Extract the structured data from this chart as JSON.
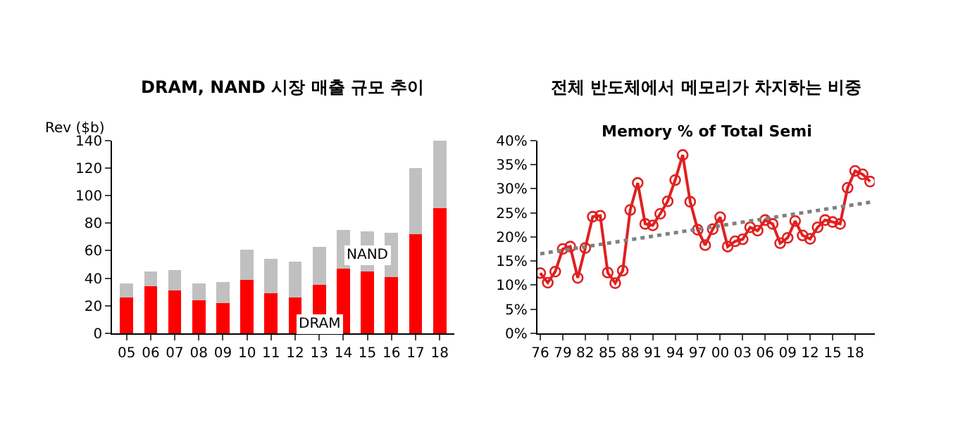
{
  "chart_data": [
    {
      "type": "bar",
      "title": "DRAM, NAND 시장 매출 규모 추이",
      "ylabel": "Rev ($b)",
      "stacked": true,
      "categories": [
        "05",
        "06",
        "07",
        "08",
        "09",
        "10",
        "11",
        "12",
        "13",
        "14",
        "15",
        "16",
        "17",
        "18"
      ],
      "series": [
        {
          "color": "#ff0000",
          "values": [
            26,
            34,
            31,
            24,
            22,
            39,
            29,
            26,
            35,
            47,
            45,
            41,
            72,
            91
          ]
        },
        {
          "color": "#c0c0c0",
          "values": [
            10,
            11,
            15,
            12,
            15,
            22,
            25,
            26,
            28,
            28,
            29,
            32,
            48,
            49
          ]
        }
      ],
      "ylim": [
        0,
        140
      ],
      "yticks": [
        0,
        20,
        40,
        60,
        80,
        100,
        120,
        140
      ],
      "annotations": [
        {
          "text": "DRAM",
          "x": "13",
          "y": 7
        },
        {
          "text": "NAND",
          "x": "15",
          "y": 57
        }
      ]
    },
    {
      "type": "line",
      "title": "전체 반도체에서 메모리가 차지하는 비중",
      "subtitle": "Memory % of Total Semi",
      "x": [
        1976,
        1977,
        1978,
        1979,
        1980,
        1981,
        1982,
        1983,
        1984,
        1985,
        1986,
        1987,
        1988,
        1989,
        1990,
        1991,
        1992,
        1993,
        1994,
        1995,
        1996,
        1997,
        1998,
        1999,
        2000,
        2001,
        2002,
        2003,
        2004,
        2005,
        2006,
        2007,
        2008,
        2009,
        2010,
        2011,
        2012,
        2013,
        2014,
        2015,
        2016,
        2017,
        2018,
        2019,
        2020
      ],
      "series": [
        {
          "color": "#e02020",
          "marker": "circle",
          "values": [
            12.5,
            10.5,
            12.8,
            17.5,
            18,
            11.5,
            17.7,
            24.2,
            24.4,
            12.6,
            10.4,
            13,
            25.6,
            31.2,
            22.7,
            22.4,
            24.8,
            27.4,
            31.8,
            37,
            27.3,
            21.5,
            18.3,
            21.6,
            24.1,
            18,
            19.1,
            19.5,
            22,
            21.3,
            23.5,
            22.7,
            18.7,
            19.8,
            23.3,
            20.3,
            19.6,
            22,
            23.5,
            23.1,
            22.7,
            30.2,
            33.7,
            33,
            31.5
          ]
        },
        {
          "color": "#808080",
          "marker": "none",
          "line_style": "dotted",
          "x": [
            1976,
            2020
          ],
          "values": [
            16.5,
            27.2
          ]
        }
      ],
      "xlim": [
        1975.6,
        2020.6
      ],
      "xticks": [
        {
          "value": 1976,
          "label": "76"
        },
        {
          "value": 1979,
          "label": "79"
        },
        {
          "value": 1982,
          "label": "82"
        },
        {
          "value": 1985,
          "label": "85"
        },
        {
          "value": 1988,
          "label": "88"
        },
        {
          "value": 1991,
          "label": "91"
        },
        {
          "value": 1994,
          "label": "94"
        },
        {
          "value": 1997,
          "label": "97"
        },
        {
          "value": 2000,
          "label": "00"
        },
        {
          "value": 2003,
          "label": "03"
        },
        {
          "value": 2006,
          "label": "06"
        },
        {
          "value": 2009,
          "label": "09"
        },
        {
          "value": 2012,
          "label": "12"
        },
        {
          "value": 2015,
          "label": "15"
        },
        {
          "value": 2018,
          "label": "18"
        }
      ],
      "ylim": [
        0,
        40
      ],
      "yticks": [
        {
          "value": 0,
          "label": "0%"
        },
        {
          "value": 5,
          "label": "5%"
        },
        {
          "value": 10,
          "label": "10%"
        },
        {
          "value": 15,
          "label": "15%"
        },
        {
          "value": 20,
          "label": "20%"
        },
        {
          "value": 25,
          "label": "25%"
        },
        {
          "value": 30,
          "label": "30%"
        },
        {
          "value": 35,
          "label": "35%"
        },
        {
          "value": 40,
          "label": "40%"
        }
      ],
      "line_style": "solid"
    }
  ]
}
